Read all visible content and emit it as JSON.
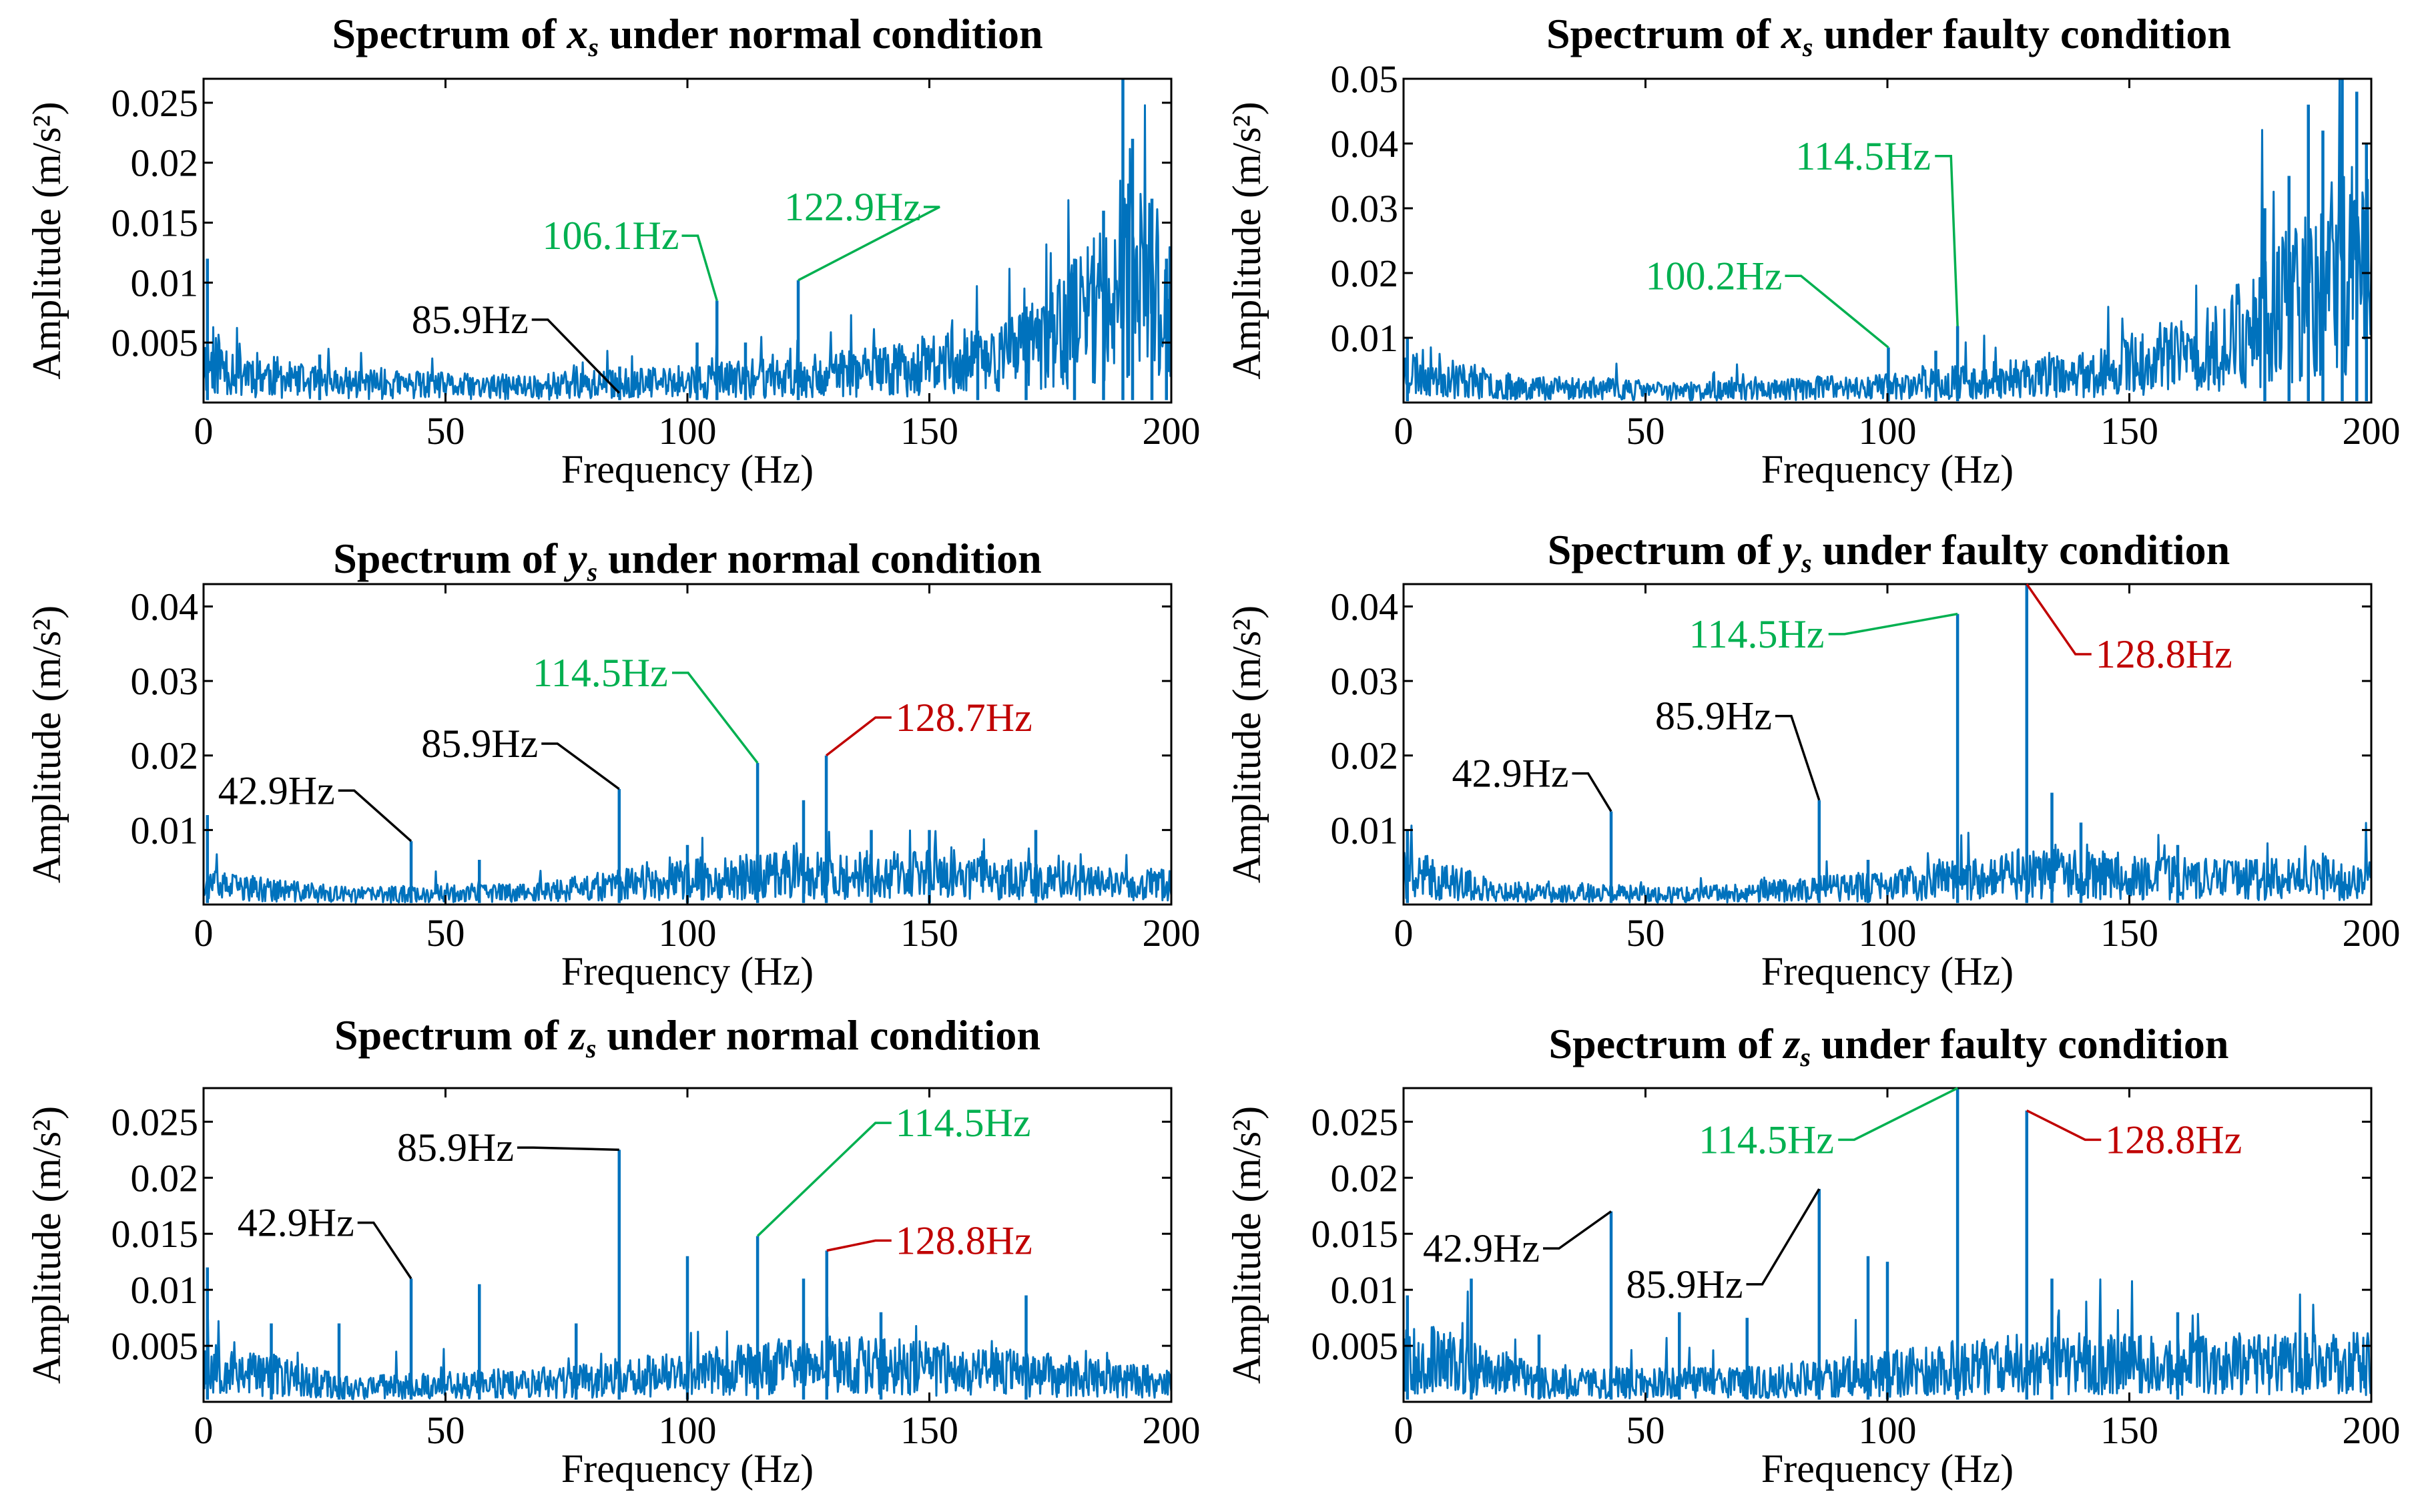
{
  "colors": {
    "signal": "#0072BD",
    "black": "#000000",
    "green": "#00B050",
    "red": "#C00000"
  },
  "chart_data": [
    {
      "id": "xs-normal",
      "type": "line",
      "title": {
        "prefix": "Spectrum of ",
        "var": "x",
        "sub": "s",
        "suffix": " under normal condition"
      },
      "xlabel": "Frequency (Hz)",
      "ylabel": "Amplitude (m/s²)",
      "xlim": [
        0,
        200
      ],
      "ylim": [
        0,
        0.027
      ],
      "xticks": [
        0,
        50,
        100,
        150,
        200
      ],
      "yticks": [
        0.005,
        0.01,
        0.015,
        0.02,
        0.025
      ],
      "ytick_labels": [
        "0.005",
        "0.01",
        "0.015",
        "0.02",
        "0.025"
      ],
      "series": [
        {
          "name": "spectrum",
          "baseline": [
            [
              0,
              0.004
            ],
            [
              20,
              0.002
            ],
            [
              60,
              0.0015
            ],
            [
              100,
              0.002
            ],
            [
              140,
              0.003
            ],
            [
              170,
              0.005
            ],
            [
              180,
              0.008
            ],
            [
              190,
              0.012
            ],
            [
              200,
              0.01
            ]
          ],
          "noise": 0.9,
          "seed": 11
        }
      ],
      "peaks": [
        [
          0.8,
          0.012
        ],
        [
          24,
          0.004
        ],
        [
          86,
          0.003
        ],
        [
          102,
          0.005
        ],
        [
          106.1,
          0.0085
        ],
        [
          112,
          0.005
        ],
        [
          122.9,
          0.0102
        ],
        [
          160,
          0.006
        ],
        [
          170,
          0.008
        ],
        [
          180,
          0.012
        ],
        [
          186,
          0.016
        ],
        [
          190,
          0.027
        ],
        [
          192,
          0.022
        ],
        [
          196,
          0.017
        ],
        [
          199,
          0.012
        ]
      ],
      "annotations": [
        {
          "text": "85.9Hz",
          "x": 85.9,
          "y": 0.0008,
          "tx": 43,
          "ty": 0.0058,
          "color": "black"
        },
        {
          "text": "106.1Hz",
          "x": 106.1,
          "y": 0.0085,
          "tx": 70,
          "ty": 0.0128,
          "color": "green"
        },
        {
          "text": "122.9Hz",
          "x": 122.9,
          "y": 0.0102,
          "tx": 120,
          "ty": 0.0152,
          "color": "green"
        }
      ]
    },
    {
      "id": "xs-faulty",
      "type": "line",
      "title": {
        "prefix": "Spectrum of ",
        "var": "x",
        "sub": "s",
        "suffix": " under faulty condition"
      },
      "xlabel": "Frequency (Hz)",
      "ylabel": "Amplitude (m/s²)",
      "xlim": [
        0,
        200
      ],
      "ylim": [
        0,
        0.05
      ],
      "xticks": [
        0,
        50,
        100,
        150,
        200
      ],
      "yticks": [
        0.01,
        0.02,
        0.03,
        0.04,
        0.05
      ],
      "ytick_labels": [
        "0.01",
        "0.02",
        "0.03",
        "0.04",
        "0.05"
      ],
      "series": [
        {
          "name": "spectrum",
          "baseline": [
            [
              0,
              0.006
            ],
            [
              20,
              0.003
            ],
            [
              60,
              0.002
            ],
            [
              100,
              0.003
            ],
            [
              140,
              0.005
            ],
            [
              165,
              0.009
            ],
            [
              180,
              0.016
            ],
            [
              190,
              0.022
            ],
            [
              200,
              0.024
            ]
          ],
          "noise": 0.9,
          "seed": 23
        }
      ],
      "peaks": [
        [
          0.8,
          0.01
        ],
        [
          100.2,
          0.0085
        ],
        [
          110,
          0.008
        ],
        [
          114.5,
          0.0118
        ],
        [
          178,
          0.03
        ],
        [
          183,
          0.035
        ],
        [
          187,
          0.046
        ],
        [
          190,
          0.042
        ],
        [
          194,
          0.05
        ],
        [
          197,
          0.048
        ],
        [
          199,
          0.04
        ]
      ],
      "annotations": [
        {
          "text": "100.2Hz",
          "x": 100.2,
          "y": 0.0085,
          "tx": 50,
          "ty": 0.0175,
          "color": "green"
        },
        {
          "text": "114.5Hz",
          "x": 114.5,
          "y": 0.0118,
          "tx": 81,
          "ty": 0.036,
          "color": "green"
        }
      ]
    },
    {
      "id": "ys-normal",
      "type": "line",
      "title": {
        "prefix": "Spectrum of ",
        "var": "y",
        "sub": "s",
        "suffix": " under normal condition"
      },
      "xlabel": "Frequency (Hz)",
      "ylabel": "Amplitude (m/s²)",
      "xlim": [
        0,
        200
      ],
      "ylim": [
        0,
        0.043
      ],
      "xticks": [
        0,
        50,
        100,
        150,
        200
      ],
      "yticks": [
        0.01,
        0.02,
        0.03,
        0.04
      ],
      "ytick_labels": [
        "0.01",
        "0.02",
        "0.03",
        "0.04"
      ],
      "series": [
        {
          "name": "spectrum",
          "baseline": [
            [
              0,
              0.003
            ],
            [
              30,
              0.0015
            ],
            [
              70,
              0.002
            ],
            [
              100,
              0.004
            ],
            [
              130,
              0.005
            ],
            [
              170,
              0.004
            ],
            [
              200,
              0.003
            ]
          ],
          "noise": 0.9,
          "seed": 37
        }
      ],
      "peaks": [
        [
          0.8,
          0.012
        ],
        [
          42.9,
          0.0085
        ],
        [
          57,
          0.006
        ],
        [
          85.9,
          0.0155
        ],
        [
          100,
          0.008
        ],
        [
          114.5,
          0.019
        ],
        [
          124,
          0.014
        ],
        [
          128.7,
          0.02
        ],
        [
          138,
          0.01
        ],
        [
          150,
          0.01
        ],
        [
          172,
          0.01
        ]
      ],
      "annotations": [
        {
          "text": "42.9Hz",
          "x": 42.9,
          "y": 0.0085,
          "tx": 3,
          "ty": 0.0135,
          "color": "black"
        },
        {
          "text": "85.9Hz",
          "x": 85.9,
          "y": 0.0155,
          "tx": 45,
          "ty": 0.0198,
          "color": "black"
        },
        {
          "text": "114.5Hz",
          "x": 114.5,
          "y": 0.019,
          "tx": 68,
          "ty": 0.0293,
          "color": "green"
        },
        {
          "text": "128.7Hz",
          "x": 128.7,
          "y": 0.02,
          "tx": 143,
          "ty": 0.0233,
          "color": "red"
        }
      ]
    },
    {
      "id": "ys-faulty",
      "type": "line",
      "title": {
        "prefix": "Spectrum of ",
        "var": "y",
        "sub": "s",
        "suffix": " under faulty condition"
      },
      "xlabel": "Frequency (Hz)",
      "ylabel": "Amplitude (m/s²)",
      "xlim": [
        0,
        200
      ],
      "ylim": [
        0,
        0.043
      ],
      "xticks": [
        0,
        50,
        100,
        150,
        200
      ],
      "yticks": [
        0.01,
        0.02,
        0.03,
        0.04
      ],
      "ytick_labels": [
        "0.01",
        "0.02",
        "0.03",
        "0.04"
      ],
      "series": [
        {
          "name": "spectrum",
          "baseline": [
            [
              0,
              0.005
            ],
            [
              20,
              0.002
            ],
            [
              60,
              0.0015
            ],
            [
              100,
              0.003
            ],
            [
              130,
              0.005
            ],
            [
              170,
              0.004
            ],
            [
              200,
              0.004
            ]
          ],
          "noise": 0.9,
          "seed": 41
        }
      ],
      "peaks": [
        [
          0.8,
          0.01
        ],
        [
          42.9,
          0.0125
        ],
        [
          85.9,
          0.014
        ],
        [
          96,
          0.006
        ],
        [
          114.5,
          0.039
        ],
        [
          128.8,
          0.043
        ],
        [
          134,
          0.015
        ],
        [
          140,
          0.011
        ],
        [
          160,
          0.008
        ]
      ],
      "annotations": [
        {
          "text": "42.9Hz",
          "x": 42.9,
          "y": 0.0125,
          "tx": 10,
          "ty": 0.0158,
          "color": "black"
        },
        {
          "text": "85.9Hz",
          "x": 85.9,
          "y": 0.014,
          "tx": 52,
          "ty": 0.0235,
          "color": "black"
        },
        {
          "text": "114.5Hz",
          "x": 114.5,
          "y": 0.039,
          "tx": 59,
          "ty": 0.0345,
          "color": "green"
        },
        {
          "text": "128.8Hz",
          "x": 128.8,
          "y": 0.043,
          "tx": 143,
          "ty": 0.0318,
          "color": "red"
        }
      ]
    },
    {
      "id": "zs-normal",
      "type": "line",
      "title": {
        "prefix": "Spectrum of ",
        "var": "z",
        "sub": "s",
        "suffix": " under normal condition"
      },
      "xlabel": "Frequency (Hz)",
      "ylabel": "Amplitude (m/s²)",
      "xlim": [
        0,
        200
      ],
      "ylim": [
        0,
        0.028
      ],
      "xticks": [
        0,
        50,
        100,
        150,
        200
      ],
      "yticks": [
        0.005,
        0.01,
        0.015,
        0.02,
        0.025
      ],
      "ytick_labels": [
        "0.005",
        "0.01",
        "0.015",
        "0.02",
        "0.025"
      ],
      "series": [
        {
          "name": "spectrum",
          "baseline": [
            [
              0,
              0.004
            ],
            [
              30,
              0.0015
            ],
            [
              70,
              0.002
            ],
            [
              100,
              0.003
            ],
            [
              130,
              0.004
            ],
            [
              170,
              0.003
            ],
            [
              200,
              0.002
            ]
          ],
          "noise": 0.9,
          "seed": 53
        }
      ],
      "peaks": [
        [
          0.8,
          0.012
        ],
        [
          14,
          0.007
        ],
        [
          28,
          0.007
        ],
        [
          42.9,
          0.011
        ],
        [
          57,
          0.0105
        ],
        [
          77,
          0.007
        ],
        [
          85.9,
          0.0225
        ],
        [
          100,
          0.013
        ],
        [
          114.5,
          0.0148
        ],
        [
          124,
          0.011
        ],
        [
          128.8,
          0.0135
        ],
        [
          140,
          0.008
        ],
        [
          170,
          0.0095
        ]
      ],
      "annotations": [
        {
          "text": "42.9Hz",
          "x": 42.9,
          "y": 0.011,
          "tx": 7,
          "ty": 0.0148,
          "color": "black"
        },
        {
          "text": "85.9Hz",
          "x": 85.9,
          "y": 0.0225,
          "tx": 40,
          "ty": 0.0215,
          "color": "black"
        },
        {
          "text": "114.5Hz",
          "x": 114.5,
          "y": 0.0148,
          "tx": 143,
          "ty": 0.0237,
          "color": "green"
        },
        {
          "text": "128.8Hz",
          "x": 128.8,
          "y": 0.0135,
          "tx": 143,
          "ty": 0.0132,
          "color": "red"
        }
      ]
    },
    {
      "id": "zs-faulty",
      "type": "line",
      "title": {
        "prefix": "Spectrum of ",
        "var": "z",
        "sub": "s",
        "suffix": " under faulty condition"
      },
      "xlabel": "Frequency (Hz)",
      "ylabel": "Amplitude (m/s²)",
      "xlim": [
        0,
        200
      ],
      "ylim": [
        0,
        0.028
      ],
      "xticks": [
        0,
        50,
        100,
        150,
        200
      ],
      "yticks": [
        0.005,
        0.01,
        0.015,
        0.02,
        0.025
      ],
      "ytick_labels": [
        "0.005",
        "0.01",
        "0.015",
        "0.02",
        "0.025"
      ],
      "series": [
        {
          "name": "spectrum",
          "baseline": [
            [
              0,
              0.005
            ],
            [
              30,
              0.002
            ],
            [
              70,
              0.002
            ],
            [
              100,
              0.003
            ],
            [
              130,
              0.004
            ],
            [
              170,
              0.004
            ],
            [
              200,
              0.004
            ]
          ],
          "noise": 0.9,
          "seed": 67
        }
      ],
      "peaks": [
        [
          0.8,
          0.0095
        ],
        [
          14,
          0.011
        ],
        [
          28,
          0.006
        ],
        [
          42.9,
          0.017
        ],
        [
          57,
          0.008
        ],
        [
          71,
          0.0075
        ],
        [
          85.9,
          0.019
        ],
        [
          96,
          0.013
        ],
        [
          100,
          0.0125
        ],
        [
          114.5,
          0.028
        ],
        [
          128.8,
          0.026
        ],
        [
          134,
          0.011
        ],
        [
          160,
          0.008
        ]
      ],
      "annotations": [
        {
          "text": "42.9Hz",
          "x": 42.9,
          "y": 0.017,
          "tx": 4,
          "ty": 0.0125,
          "color": "black"
        },
        {
          "text": "85.9Hz",
          "x": 85.9,
          "y": 0.019,
          "tx": 46,
          "ty": 0.0093,
          "color": "black"
        },
        {
          "text": "114.5Hz",
          "x": 114.5,
          "y": 0.028,
          "tx": 61,
          "ty": 0.0222,
          "color": "green"
        },
        {
          "text": "128.8Hz",
          "x": 128.8,
          "y": 0.026,
          "tx": 145,
          "ty": 0.0222,
          "color": "red"
        }
      ]
    }
  ]
}
